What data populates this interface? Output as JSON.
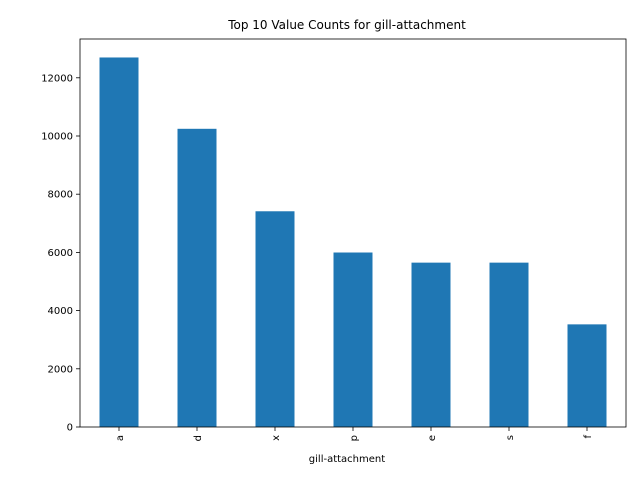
{
  "chart_data": {
    "type": "bar",
    "title": "Top 10 Value Counts for gill-attachment",
    "xlabel": "gill-attachment",
    "ylabel": "",
    "categories": [
      "a",
      "d",
      "x",
      "p",
      "e",
      "s",
      "f"
    ],
    "values": [
      12698,
      10247,
      7413,
      5996,
      5648,
      5648,
      3527
    ],
    "ylim": [
      0,
      13333
    ],
    "yticks": [
      0,
      2000,
      4000,
      6000,
      8000,
      10000,
      12000
    ],
    "bar_color": "#1f77b4",
    "grid": false,
    "legend": false
  }
}
